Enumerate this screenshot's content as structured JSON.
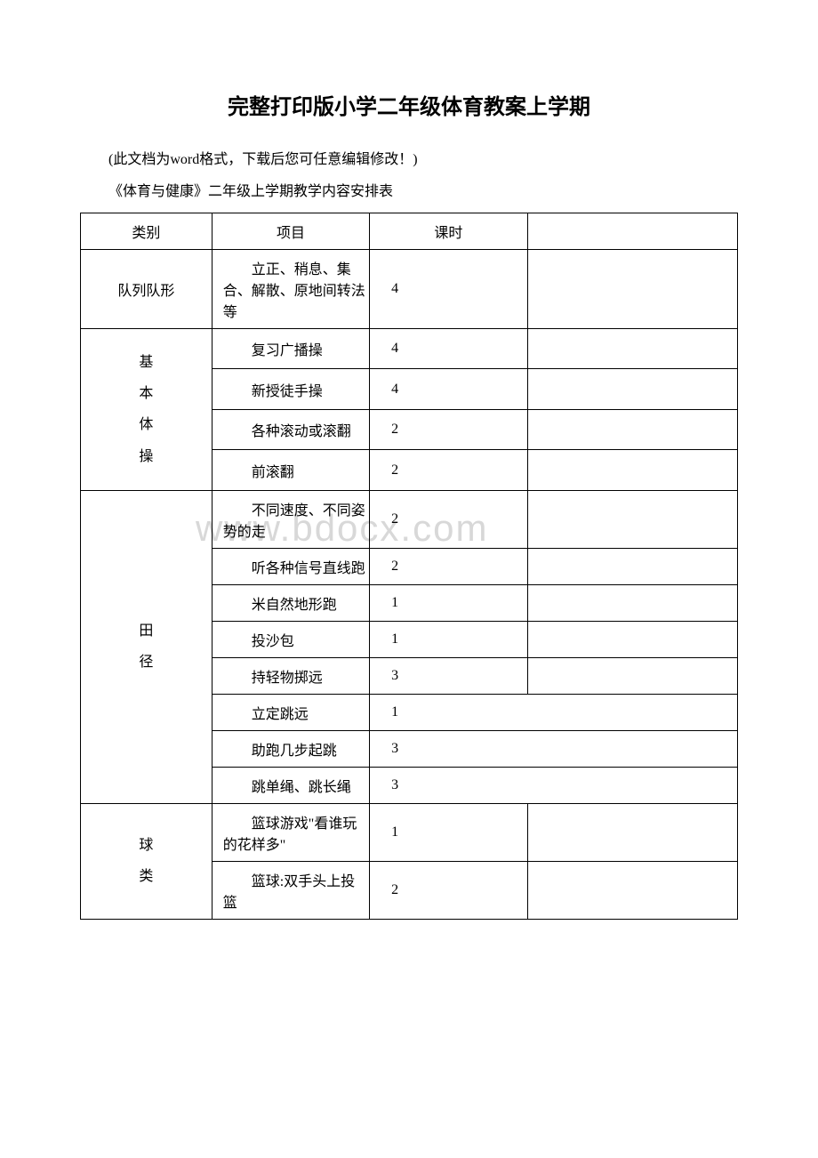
{
  "title": "完整打印版小学二年级体育教案上学期",
  "note": "(此文档为word格式，下载后您可任意编辑修改！)",
  "subtitle": "《体育与健康》二年级上学期教学内容安排表",
  "watermark": "www.bdocx.com",
  "headers": {
    "category": "类别",
    "item": "项目",
    "hours": "课时"
  },
  "categories": {
    "formation": "队列队形",
    "gymnastics_line1": "基",
    "gymnastics_line2": "本",
    "gymnastics_line3": "体",
    "gymnastics_line4": "操",
    "track_line1": "田",
    "track_line2": "径",
    "ball_line1": "球",
    "ball_line2": "类"
  },
  "rows": {
    "formation_item": "立正、稍息、集合、解散、原地间转法等",
    "formation_hours": "4",
    "gym1_item": "复习广播操",
    "gym1_hours": "4",
    "gym2_item": "新授徒手操",
    "gym2_hours": "4",
    "gym3_item": "各种滚动或滚翻",
    "gym3_hours": "2",
    "gym4_item": "前滚翻",
    "gym4_hours": "2",
    "track1_item": "不同速度、不同姿势的走",
    "track1_hours": "2",
    "track2_item": "听各种信号直线跑",
    "track2_hours": "2",
    "track3_item": "米自然地形跑",
    "track3_hours": "1",
    "track4_item": "投沙包",
    "track4_hours": "1",
    "track5_item": "持轻物掷远",
    "track5_hours": "3",
    "track6_item": "立定跳远",
    "track6_hours": "1",
    "track7_item": "助跑几步起跳",
    "track7_hours": "3",
    "track8_item": "跳单绳、跳长绳",
    "track8_hours": "3",
    "ball1_item": "篮球游戏\"看谁玩的花样多\"",
    "ball1_hours": "1",
    "ball2_item": "篮球:双手头上投篮",
    "ball2_hours": "2"
  }
}
